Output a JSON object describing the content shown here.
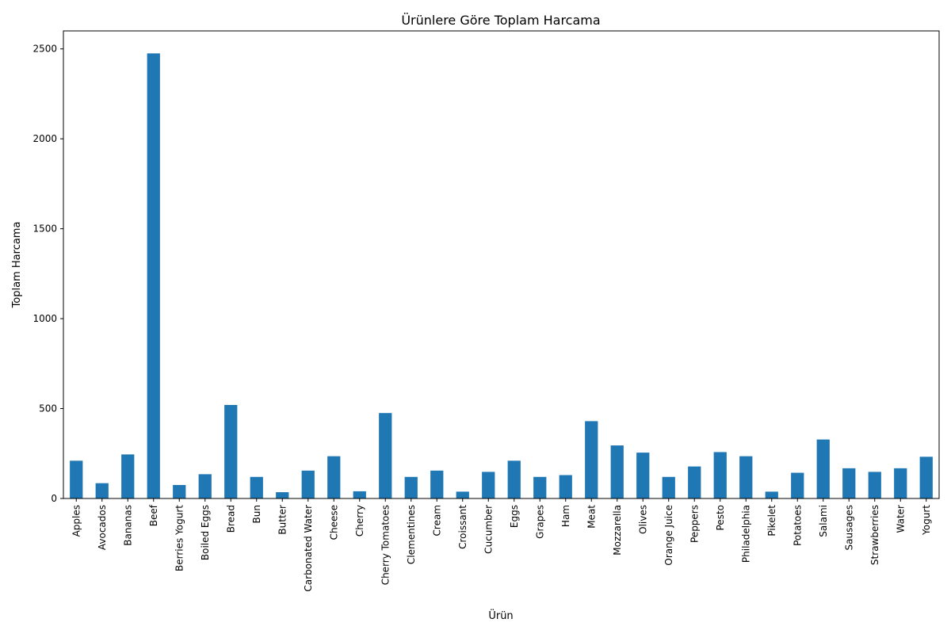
{
  "chart_data": {
    "type": "bar",
    "title": "Ürünlere Göre Toplam Harcama",
    "xlabel": "Ürün",
    "ylabel": "Toplam Harcama",
    "ylim": [
      0,
      2600
    ],
    "yticks": [
      0,
      500,
      1000,
      1500,
      2000,
      2500
    ],
    "grid": false,
    "bar_color": "#1f77b4",
    "categories": [
      "Apples",
      "Avocados",
      "Bananas",
      "Beef",
      "Berries Yogurt",
      "Boiled Eggs",
      "Bread",
      "Bun",
      "Butter",
      "Carbonated Water",
      "Cheese",
      "Cherry",
      "Cherry Tomatoes",
      "Clementines",
      "Cream",
      "Croissant",
      "Cucumber",
      "Eggs",
      "Grapes",
      "Ham",
      "Meat",
      "Mozzarella",
      "Olives",
      "Orange Juice",
      "Peppers",
      "Pesto",
      "Philadelphia",
      "Pikelet",
      "Potatoes",
      "Salami",
      "Sausages",
      "Strawberries",
      "Water",
      "Yogurt"
    ],
    "values": [
      210,
      85,
      245,
      2475,
      75,
      135,
      520,
      120,
      35,
      155,
      235,
      40,
      475,
      120,
      155,
      38,
      148,
      210,
      120,
      130,
      430,
      295,
      255,
      120,
      178,
      258,
      235,
      38,
      143,
      328,
      168,
      148,
      168,
      232
    ]
  }
}
